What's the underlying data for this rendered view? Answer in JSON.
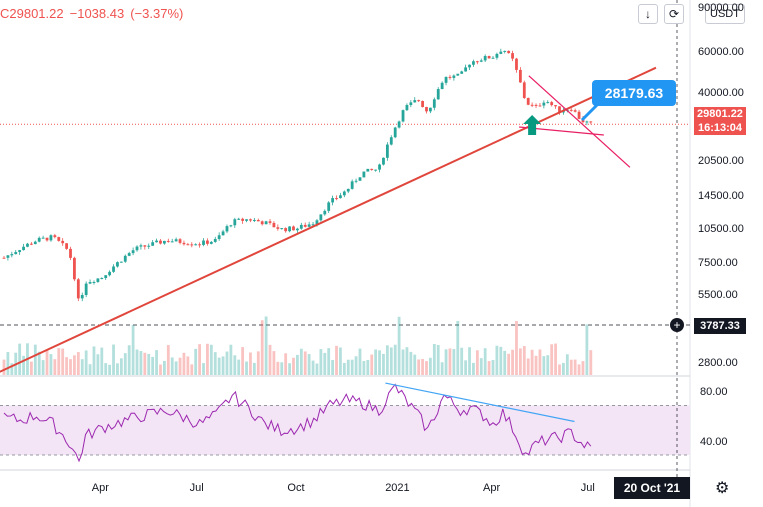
{
  "header": {
    "price": "C29801.22",
    "change": "−1038.43",
    "change_pct": "(−3.37%)"
  },
  "toolbar": {
    "scroll_icon": "down-arrow-icon",
    "autoscale_icon": "autoscale-icon",
    "unit_label": "USDT"
  },
  "current_price": {
    "value": "29801.22",
    "countdown": "16:13:04"
  },
  "level_label": "3787.33",
  "callout_label": "28179.63",
  "date_label": "20 Oct '21",
  "colors": {
    "up": "#26a69a",
    "down": "#ef5350",
    "trendline": "#e0463c",
    "pattern": "#e91e63",
    "rsi": "#9c27b0",
    "rsi_band": "#f3e5f5",
    "divergence": "#42a5f5",
    "callout": "#2196f3"
  },
  "chart_data": {
    "type": "line",
    "price_axis_ticks": [
      "90000.00",
      "60000.00",
      "40000.00",
      "29801.22",
      "20500.00",
      "14500.00",
      "10500.00",
      "7500.00",
      "5500.00",
      "3787.33",
      "2800.00"
    ],
    "price_scale": "log",
    "rsi_axis_ticks": [
      "80.00",
      "40.00"
    ],
    "x_tick_labels": [
      "Apr",
      "Jul",
      "Oct",
      "2021",
      "Apr",
      "Jul"
    ],
    "price_series": {
      "x_months": [
        0,
        0.5,
        1,
        1.5,
        2,
        2.3,
        2.5,
        3,
        4,
        5,
        6,
        6.5,
        7,
        7.5,
        8,
        8.5,
        9,
        9.5,
        10,
        10.5,
        11,
        11.5,
        12,
        12.3,
        12.7,
        13,
        13.5,
        14,
        14.3,
        14.7,
        15,
        15.3,
        15.6,
        16,
        16.3,
        16.6,
        17,
        17.4,
        17.7,
        18
      ],
      "x_reference": "month 0 = start of Jan 2020",
      "close": [
        8000,
        8800,
        9500,
        9800,
        8500,
        5000,
        6300,
        6600,
        8700,
        9500,
        9200,
        9500,
        11400,
        11700,
        11300,
        10600,
        10700,
        11300,
        13800,
        15500,
        18500,
        19200,
        29000,
        35000,
        38000,
        33500,
        47000,
        48000,
        55000,
        57000,
        58000,
        63000,
        56000,
        37000,
        35000,
        38000,
        34000,
        35000,
        31000,
        29800
      ]
    },
    "rsi_series": {
      "x_months": [
        0,
        0.5,
        1,
        1.5,
        2,
        2.3,
        2.5,
        3,
        4,
        5,
        6,
        6.5,
        7,
        7.5,
        8,
        8.5,
        9,
        9.5,
        10,
        10.5,
        11,
        11.5,
        12,
        12.3,
        12.7,
        13,
        13.5,
        14,
        14.3,
        14.7,
        15,
        15.3,
        15.6,
        16,
        16.3,
        16.6,
        17,
        17.4,
        17.7,
        18
      ],
      "values": [
        60,
        58,
        62,
        55,
        40,
        25,
        45,
        52,
        60,
        66,
        55,
        62,
        78,
        68,
        55,
        50,
        52,
        58,
        70,
        74,
        72,
        66,
        85,
        75,
        62,
        50,
        78,
        66,
        68,
        62,
        55,
        64,
        52,
        30,
        38,
        42,
        44,
        48,
        40,
        35
      ]
    },
    "annotations": {
      "trendline": {
        "from": {
          "x_months": -0.4,
          "price": 2500
        },
        "to": {
          "x_months": 20,
          "price": 52000
        }
      },
      "divergence_line": {
        "from": {
          "x_months": 11.7,
          "rsi": 88
        },
        "to": {
          "x_months": 17.5,
          "rsi": 57
        }
      },
      "pattern_upper": {
        "from": {
          "x_months": 16.1,
          "price": 48000
        },
        "to": {
          "x_months": 19.2,
          "price": 19500
        }
      },
      "pattern_lower": {
        "from": {
          "x_months": 15.8,
          "price": 29000
        },
        "to": {
          "x_months": 18.4,
          "price": 26800
        }
      },
      "up_arrow_at_months": 16.2
    }
  }
}
